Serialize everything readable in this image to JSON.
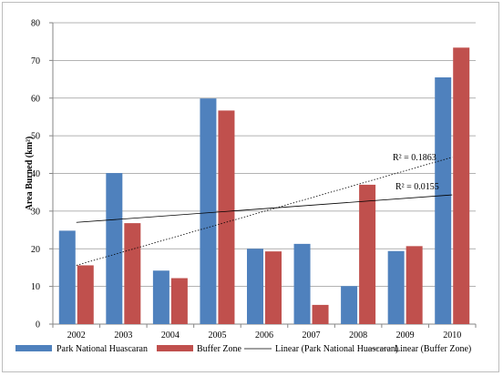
{
  "chart_data": {
    "type": "bar",
    "title": "",
    "xlabel": "",
    "ylabel": "Area Burned (km²)",
    "ylim": [
      0,
      80
    ],
    "yticks": [
      0,
      10,
      20,
      30,
      40,
      50,
      60,
      70,
      80
    ],
    "grid": "horizontal",
    "legend_position": "bottom",
    "categories": [
      "2002",
      "2003",
      "2004",
      "2005",
      "2006",
      "2007",
      "2008",
      "2009",
      "2010"
    ],
    "series": [
      {
        "name": "Park National Huascaran",
        "color": "#4f81bd",
        "values": [
          24.8,
          40.1,
          14.2,
          59.9,
          20.0,
          21.3,
          10.1,
          19.4,
          65.5
        ],
        "trendline": {
          "label": "Linear (Park National Huascaran)",
          "style": "solid",
          "start": 27.0,
          "end": 34.3,
          "r2_text": "R² = 0.0155"
        }
      },
      {
        "name": "Buffer Zone",
        "color": "#c0504d",
        "values": [
          15.6,
          26.8,
          12.2,
          56.7,
          19.3,
          5.1,
          37.0,
          20.7,
          73.4
        ],
        "trendline": {
          "label": "Linear (Buffer Zone)",
          "style": "dotted",
          "start": 15.6,
          "end": 44.3,
          "r2_text": "R² = 0.1863"
        }
      }
    ]
  }
}
